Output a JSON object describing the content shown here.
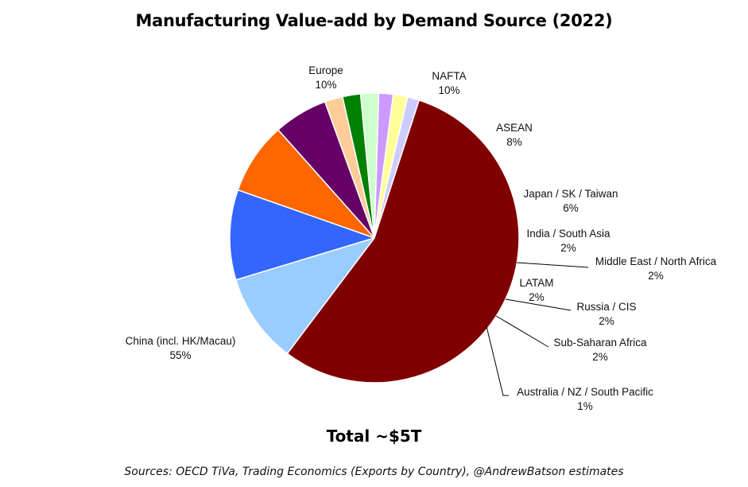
{
  "chart_data": {
    "type": "pie",
    "title": "Manufacturing Value-add by Demand Source (2022)",
    "total_label": "Total ~$5T",
    "source": "Sources: OECD TiVa, Trading Economics (Exports by Country),  @AndrewBatson estimates",
    "slices": [
      {
        "name": "Europe",
        "value": 10,
        "pct_label": "10%",
        "color": "#99ccff"
      },
      {
        "name": "NAFTA",
        "value": 10,
        "pct_label": "10%",
        "color": "#3366ff"
      },
      {
        "name": "ASEAN",
        "value": 8,
        "pct_label": "8%",
        "color": "#ff6600"
      },
      {
        "name": "Japan / SK / Taiwan",
        "value": 6,
        "pct_label": "6%",
        "color": "#660066"
      },
      {
        "name": "India / South Asia",
        "value": 2,
        "pct_label": "2%",
        "color": "#ffcc99"
      },
      {
        "name": "Middle East / North Africa",
        "value": 2,
        "pct_label": "2%",
        "color": "#008000"
      },
      {
        "name": "LATAM",
        "value": 2,
        "pct_label": "2%",
        "color": "#ccffcc"
      },
      {
        "name": "Russia / CIS",
        "value": 1.6,
        "pct_label": "2%",
        "color": "#cc99ff"
      },
      {
        "name": "Sub-Saharan Africa",
        "value": 1.6,
        "pct_label": "2%",
        "color": "#ffff99"
      },
      {
        "name": "Australia / NZ / South Pacific",
        "value": 1.3,
        "pct_label": "1%",
        "color": "#ccccff"
      },
      {
        "name": "China (incl. HK/Macau)",
        "value": 55,
        "pct_label": "55%",
        "color": "#800000"
      }
    ]
  }
}
